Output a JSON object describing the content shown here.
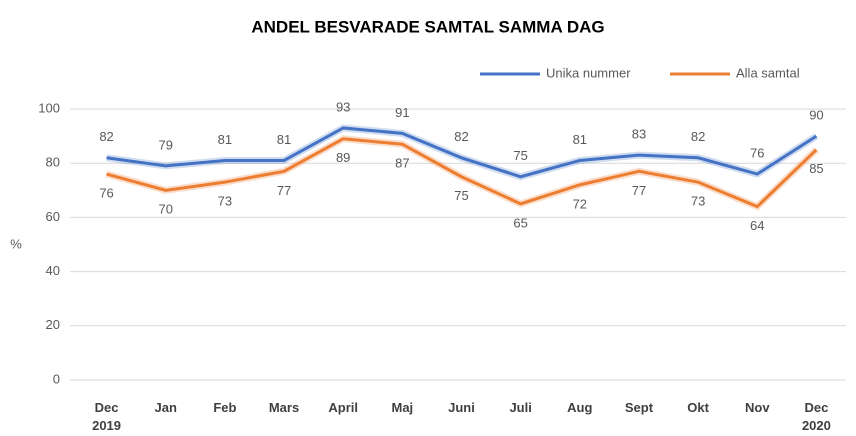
{
  "chart_data": {
    "type": "line",
    "title": "ANDEL BESVARADE SAMTAL SAMMA DAG",
    "ylabel": "%",
    "categories": [
      "Dec 2019",
      "Jan",
      "Feb",
      "Mars",
      "April",
      "Maj",
      "Juni",
      "Juli",
      "Aug",
      "Sept",
      "Okt",
      "Nov",
      "Dec 2020"
    ],
    "series": [
      {
        "name": "Unika nummer",
        "color": "#4472c4",
        "values": [
          82,
          79,
          81,
          81,
          93,
          91,
          82,
          75,
          81,
          83,
          82,
          76,
          90
        ]
      },
      {
        "name": "Alla samtal",
        "color": "#ed7d31",
        "values": [
          76,
          70,
          73,
          77,
          89,
          87,
          75,
          65,
          72,
          77,
          73,
          64,
          85
        ]
      }
    ],
    "ylim": [
      0,
      100
    ],
    "yticks": [
      0,
      20,
      40,
      60,
      80,
      100
    ],
    "grid": true,
    "legend": "top-right"
  }
}
